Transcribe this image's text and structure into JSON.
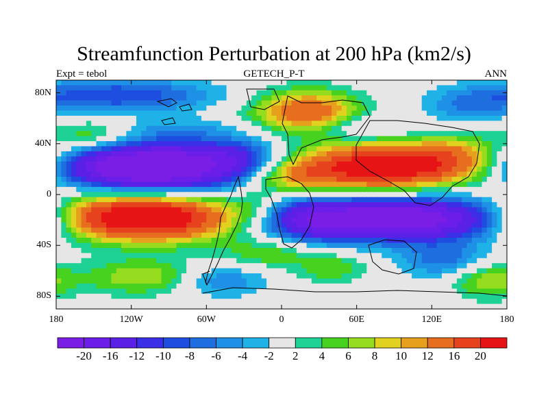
{
  "title": "Streamfunction Perturbation at 200 hPa (km2/s)",
  "subtitle_left": "Expt = tebol",
  "subtitle_center": "GETECH_P-T",
  "subtitle_right": "ANN",
  "y_ticks": [
    {
      "lat": 80,
      "label": "80N"
    },
    {
      "lat": 40,
      "label": "40N"
    },
    {
      "lat": 0,
      "label": "0"
    },
    {
      "lat": -40,
      "label": "40S"
    },
    {
      "lat": -80,
      "label": "80S"
    }
  ],
  "x_ticks": [
    {
      "lon": -180,
      "label": "180"
    },
    {
      "lon": -120,
      "label": "120W"
    },
    {
      "lon": -60,
      "label": "60W"
    },
    {
      "lon": 0,
      "label": "0"
    },
    {
      "lon": 60,
      "label": "60E"
    },
    {
      "lon": 120,
      "label": "120E"
    },
    {
      "lon": 180,
      "label": "180"
    }
  ],
  "colorbar": {
    "levels": [
      "-20",
      "-16",
      "-12",
      "-10",
      "-8",
      "-6",
      "-4",
      "-2",
      "2",
      "4",
      "6",
      "8",
      "10",
      "12",
      "16",
      "20"
    ],
    "colors": [
      "#7a1ee6",
      "#6a1ee8",
      "#5a20e6",
      "#3a2ee6",
      "#1e4ee0",
      "#1e6ee0",
      "#1e90e6",
      "#1eb2e6",
      "#e6e6e6",
      "#1ed296",
      "#46d21e",
      "#96dc1e",
      "#e0d21e",
      "#e6a01e",
      "#e66e1e",
      "#e6421e",
      "#e61414"
    ]
  },
  "chart_data": {
    "type": "heatmap",
    "title": "Streamfunction Perturbation at 200 hPa (km2/s)",
    "xlim": [
      -180,
      180
    ],
    "ylim": [
      -90,
      90
    ],
    "units": "km2/s",
    "features": [
      {
        "sign": "negative",
        "value": -22,
        "lon": -90,
        "lat": 22
      },
      {
        "sign": "negative",
        "value": -8,
        "lon": -120,
        "lat": 78
      },
      {
        "sign": "negative",
        "value": -22,
        "lon": 70,
        "lat": -18
      },
      {
        "sign": "negative",
        "value": -22,
        "lon": 110,
        "lat": -20
      },
      {
        "sign": "negative",
        "value": -6,
        "lon": 130,
        "lat": -52
      },
      {
        "sign": "negative",
        "value": -6,
        "lon": -50,
        "lat": -68
      },
      {
        "sign": "negative",
        "value": -4,
        "lon": 150,
        "lat": 68
      },
      {
        "sign": "negative",
        "value": -4,
        "lon": 60,
        "lat": 52
      },
      {
        "sign": "positive",
        "value": 22,
        "lon": -100,
        "lat": -18
      },
      {
        "sign": "positive",
        "value": 22,
        "lon": 80,
        "lat": 22
      },
      {
        "sign": "positive",
        "value": 14,
        "lon": 20,
        "lat": 65
      },
      {
        "sign": "positive",
        "value": 8,
        "lon": 0,
        "lat": 14
      },
      {
        "sign": "positive",
        "value": 7,
        "lon": -110,
        "lat": -65
      },
      {
        "sign": "positive",
        "value": 6,
        "lon": -150,
        "lat": 48
      },
      {
        "sign": "positive",
        "value": 5,
        "lon": -10,
        "lat": -46
      },
      {
        "sign": "positive",
        "value": 7,
        "lon": 165,
        "lat": -68
      },
      {
        "sign": "positive",
        "value": 5,
        "lon": 40,
        "lat": -58
      }
    ]
  }
}
